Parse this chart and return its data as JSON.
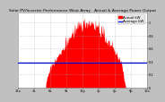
{
  "title": "Solar PV/Inverter Performance West Array   Actual & Average Power Output",
  "title_fontsize": 3.2,
  "bg_color": "#c0c0c0",
  "plot_bg_color": "#ffffff",
  "bar_color": "#ff0000",
  "avg_line_color": "#0000cc",
  "legend_actual_label": "Actual kW",
  "legend_avg_label": "Average kW",
  "legend_color_actual": "#ff0000",
  "legend_color_avg": "#0000ff",
  "n_points": 288,
  "avg_value": 0.38,
  "xlim": [
    0,
    287
  ],
  "ylim": [
    0,
    1.15
  ],
  "ytick_values": [
    0.0,
    0.2,
    0.4,
    0.6,
    0.8,
    1.0
  ],
  "ytick_labels": [
    "0",
    "0.2",
    "0.4",
    "0.6",
    "0.8",
    "1"
  ],
  "xtick_positions": [
    0,
    36,
    72,
    108,
    144,
    180,
    216,
    252,
    287
  ],
  "xtick_labels": [
    "12a",
    "3a",
    "6a",
    "9a",
    "12p",
    "3p",
    "6p",
    "9p",
    "12a"
  ],
  "dashed_vline_positions": [
    0,
    36,
    72,
    108,
    144,
    180,
    216,
    252,
    287
  ],
  "dashed_hline_positions": [
    0.0,
    0.2,
    0.4,
    0.6,
    0.8,
    1.0
  ],
  "tick_fontsize": 2.5,
  "legend_fontsize": 2.8,
  "title_color": "#000000",
  "tick_color": "#000000",
  "grid_color": "#aaaaaa",
  "spine_color": "#888888"
}
